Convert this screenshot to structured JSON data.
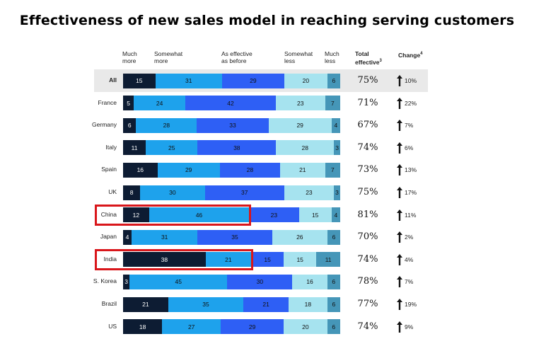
{
  "chart_data": {
    "type": "bar",
    "stacked": true,
    "orientation": "horizontal",
    "title": "Effectiveness of new sales model in reaching serving customers",
    "categories": [
      "All",
      "France",
      "Germany",
      "Italy",
      "Spain",
      "UK",
      "China",
      "Japan",
      "India",
      "S. Korea",
      "Brazil",
      "US"
    ],
    "series": [
      {
        "name": "Much more",
        "header": [
          "Much",
          "more"
        ],
        "color": "#0d1c33",
        "values": [
          15,
          5,
          6,
          11,
          16,
          8,
          12,
          4,
          38,
          3,
          21,
          18
        ]
      },
      {
        "name": "Somewhat more",
        "header": [
          "Somewhat",
          "more"
        ],
        "color": "#1ea2ec",
        "values": [
          31,
          24,
          28,
          25,
          29,
          30,
          46,
          31,
          21,
          45,
          35,
          27
        ]
      },
      {
        "name": "As effective as before",
        "header": [
          "As effective",
          "as before"
        ],
        "color": "#2e5ff5",
        "values": [
          29,
          42,
          33,
          38,
          28,
          37,
          23,
          35,
          15,
          30,
          21,
          29
        ]
      },
      {
        "name": "Somewhat less",
        "header": [
          "Somewhat",
          "less"
        ],
        "color": "#a6e3ef",
        "values": [
          20,
          23,
          29,
          28,
          21,
          23,
          15,
          26,
          15,
          16,
          18,
          20
        ]
      },
      {
        "name": "Much less",
        "header": [
          "Much",
          "less"
        ],
        "color": "#4596b8",
        "values": [
          6,
          7,
          4,
          3,
          7,
          3,
          4,
          6,
          11,
          6,
          6,
          6
        ]
      }
    ],
    "total_effective": {
      "header": [
        "Total",
        "effective"
      ],
      "footnote": "3",
      "values": [
        "75%",
        "71%",
        "67%",
        "74%",
        "73%",
        "75%",
        "81%",
        "70%",
        "74%",
        "78%",
        "77%",
        "74%"
      ]
    },
    "change": {
      "header": "Change",
      "footnote": "4",
      "values": [
        "10%",
        "22%",
        "7%",
        "6%",
        "13%",
        "17%",
        "11%",
        "2%",
        "4%",
        "7%",
        "19%",
        "9%"
      ]
    },
    "highlighted_row": "All",
    "annotations": [
      {
        "category": "China",
        "series": [
          "Much more",
          "Somewhat more"
        ],
        "style": "red box"
      },
      {
        "category": "India",
        "series": [
          "Much more",
          "Somewhat more"
        ],
        "style": "red box"
      }
    ]
  }
}
